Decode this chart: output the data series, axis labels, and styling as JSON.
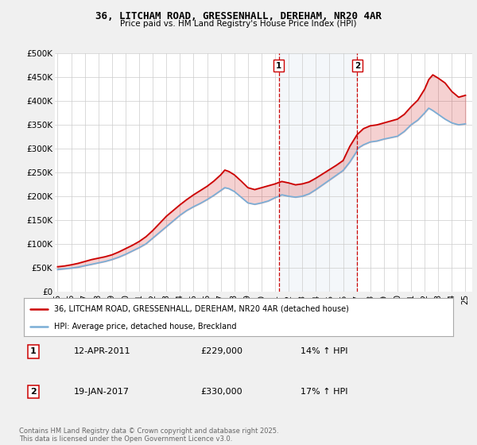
{
  "title": "36, LITCHAM ROAD, GRESSENHALL, DEREHAM, NR20 4AR",
  "subtitle": "Price paid vs. HM Land Registry's House Price Index (HPI)",
  "ylim": [
    0,
    500000
  ],
  "yticks": [
    0,
    50000,
    100000,
    150000,
    200000,
    250000,
    300000,
    350000,
    400000,
    450000,
    500000
  ],
  "ytick_labels": [
    "£0",
    "£50K",
    "£100K",
    "£150K",
    "£200K",
    "£250K",
    "£300K",
    "£350K",
    "£400K",
    "£450K",
    "£500K"
  ],
  "background_color": "#f0f0f0",
  "plot_bg_color": "#ffffff",
  "grid_color": "#cccccc",
  "red_color": "#cc0000",
  "blue_color": "#7aaed6",
  "event1_x": 2011.27,
  "event2_x": 2017.05,
  "event1_label": "1",
  "event2_label": "2",
  "event1_date": "12-APR-2011",
  "event1_price": "£229,000",
  "event1_hpi": "14% ↑ HPI",
  "event2_date": "19-JAN-2017",
  "event2_price": "£330,000",
  "event2_hpi": "17% ↑ HPI",
  "legend_line1": "36, LITCHAM ROAD, GRESSENHALL, DEREHAM, NR20 4AR (detached house)",
  "legend_line2": "HPI: Average price, detached house, Breckland",
  "footer": "Contains HM Land Registry data © Crown copyright and database right 2025.\nThis data is licensed under the Open Government Licence v3.0.",
  "red_x": [
    1995.0,
    1995.5,
    1996.0,
    1996.5,
    1997.0,
    1997.5,
    1998.0,
    1998.5,
    1999.0,
    1999.5,
    2000.0,
    2000.5,
    2001.0,
    2001.5,
    2002.0,
    2002.5,
    2003.0,
    2003.5,
    2004.0,
    2004.5,
    2005.0,
    2005.5,
    2006.0,
    2006.5,
    2007.0,
    2007.3,
    2007.6,
    2008.0,
    2008.5,
    2009.0,
    2009.5,
    2010.0,
    2010.5,
    2011.0,
    2011.27,
    2011.5,
    2012.0,
    2012.5,
    2013.0,
    2013.5,
    2014.0,
    2014.5,
    2015.0,
    2015.5,
    2016.0,
    2016.5,
    2017.0,
    2017.05,
    2017.5,
    2018.0,
    2018.5,
    2019.0,
    2019.5,
    2020.0,
    2020.5,
    2021.0,
    2021.5,
    2022.0,
    2022.3,
    2022.6,
    2023.0,
    2023.5,
    2024.0,
    2024.5,
    2025.0
  ],
  "red_y": [
    52000,
    53500,
    56000,
    59000,
    63000,
    67000,
    70000,
    73000,
    77000,
    83000,
    90000,
    97000,
    105000,
    115000,
    128000,
    143000,
    158000,
    170000,
    182000,
    193000,
    203000,
    212000,
    221000,
    232000,
    245000,
    255000,
    252000,
    245000,
    232000,
    218000,
    214000,
    218000,
    222000,
    226000,
    229000,
    231000,
    228000,
    224000,
    226000,
    230000,
    238000,
    247000,
    256000,
    265000,
    275000,
    305000,
    328000,
    330000,
    342000,
    348000,
    350000,
    354000,
    358000,
    362000,
    372000,
    388000,
    402000,
    425000,
    445000,
    455000,
    448000,
    438000,
    420000,
    408000,
    412000
  ],
  "blue_x": [
    1995.0,
    1995.5,
    1996.0,
    1996.5,
    1997.0,
    1997.5,
    1998.0,
    1998.5,
    1999.0,
    1999.5,
    2000.0,
    2000.5,
    2001.0,
    2001.5,
    2002.0,
    2002.5,
    2003.0,
    2003.5,
    2004.0,
    2004.5,
    2005.0,
    2005.5,
    2006.0,
    2006.5,
    2007.0,
    2007.3,
    2007.6,
    2008.0,
    2008.5,
    2009.0,
    2009.5,
    2010.0,
    2010.5,
    2011.0,
    2011.27,
    2011.5,
    2012.0,
    2012.5,
    2013.0,
    2013.5,
    2014.0,
    2014.5,
    2015.0,
    2015.5,
    2016.0,
    2016.5,
    2017.0,
    2017.05,
    2017.5,
    2018.0,
    2018.5,
    2019.0,
    2019.5,
    2020.0,
    2020.5,
    2021.0,
    2021.5,
    2022.0,
    2022.3,
    2022.6,
    2023.0,
    2023.5,
    2024.0,
    2024.5,
    2025.0
  ],
  "blue_y": [
    46000,
    47500,
    49000,
    51000,
    54000,
    57000,
    60000,
    63000,
    67000,
    72000,
    78000,
    85000,
    92000,
    100000,
    112000,
    124000,
    136000,
    148000,
    160000,
    170000,
    178000,
    185000,
    193000,
    202000,
    212000,
    218000,
    216000,
    210000,
    198000,
    186000,
    183000,
    186000,
    190000,
    197000,
    200000,
    203000,
    200000,
    198000,
    200000,
    205000,
    214000,
    224000,
    234000,
    244000,
    254000,
    272000,
    294000,
    300000,
    308000,
    314000,
    316000,
    320000,
    323000,
    326000,
    336000,
    350000,
    360000,
    375000,
    385000,
    380000,
    372000,
    362000,
    354000,
    350000,
    352000
  ],
  "xlim_left": 1994.8,
  "xlim_right": 2025.5,
  "xticks": [
    1995,
    1996,
    1997,
    1998,
    1999,
    2000,
    2001,
    2002,
    2003,
    2004,
    2005,
    2006,
    2007,
    2008,
    2009,
    2010,
    2011,
    2012,
    2013,
    2014,
    2015,
    2016,
    2017,
    2018,
    2019,
    2020,
    2021,
    2022,
    2023,
    2024,
    2025
  ]
}
